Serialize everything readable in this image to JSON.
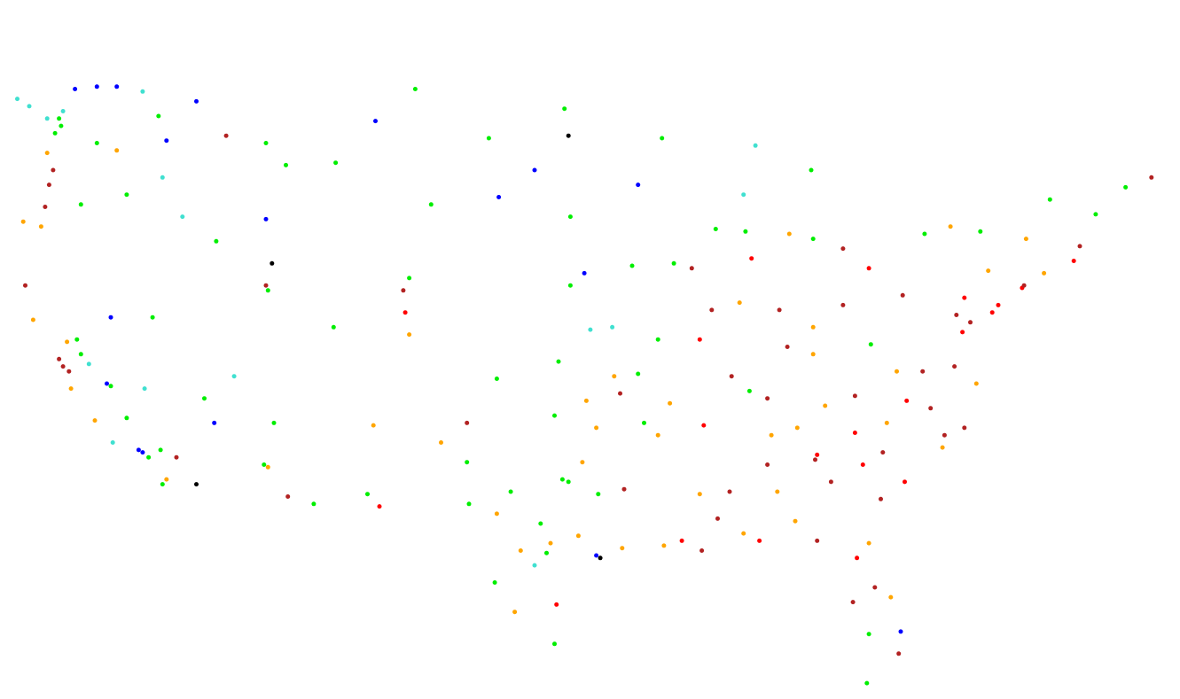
{
  "map": {
    "type": "scatter",
    "projection": "equirectangular",
    "lon_range": [
      -124.7,
      -67.0
    ],
    "lat_range": [
      25.0,
      49.0
    ],
    "categories": [
      {
        "id": 0,
        "color": "#40e0d0"
      },
      {
        "id": 1,
        "color": "#0000ff"
      },
      {
        "id": 2,
        "color": "#000000"
      },
      {
        "id": 3,
        "color": "#00ee00"
      },
      {
        "id": 4,
        "color": "#ffa500"
      },
      {
        "id": 5,
        "color": "#b22222"
      },
      {
        "id": 6,
        "color": "#ff0000"
      }
    ],
    "points": [
      [
        -124.5,
        48.4,
        0
      ],
      [
        -123.9,
        48.1,
        0
      ],
      [
        -123.0,
        47.6,
        0
      ],
      [
        -122.4,
        47.6,
        3
      ],
      [
        -122.3,
        47.3,
        3
      ],
      [
        -122.6,
        47.0,
        3
      ],
      [
        -122.2,
        47.9,
        0
      ],
      [
        -121.6,
        48.8,
        1
      ],
      [
        -120.5,
        48.9,
        1
      ],
      [
        -119.5,
        48.9,
        1
      ],
      [
        -118.2,
        48.7,
        0
      ],
      [
        -117.4,
        47.7,
        3
      ],
      [
        -117.0,
        46.7,
        1
      ],
      [
        -119.5,
        46.3,
        4
      ],
      [
        -120.5,
        46.6,
        3
      ],
      [
        -123.0,
        46.2,
        4
      ],
      [
        -122.7,
        45.5,
        5
      ],
      [
        -122.9,
        44.9,
        5
      ],
      [
        -123.1,
        44.0,
        5
      ],
      [
        -123.3,
        43.2,
        4
      ],
      [
        -124.2,
        43.4,
        4
      ],
      [
        -121.3,
        44.1,
        3
      ],
      [
        -119.0,
        44.5,
        3
      ],
      [
        -117.2,
        45.2,
        0
      ],
      [
        -116.2,
        43.6,
        0
      ],
      [
        -114.5,
        42.6,
        3
      ],
      [
        -112.0,
        43.5,
        1
      ],
      [
        -111.0,
        45.7,
        3
      ],
      [
        -108.5,
        45.8,
        3
      ],
      [
        -106.5,
        47.5,
        1
      ],
      [
        -104.5,
        48.8,
        3
      ],
      [
        -112.0,
        46.6,
        3
      ],
      [
        -114.0,
        46.9,
        5
      ],
      [
        -115.5,
        48.3,
        1
      ],
      [
        -124.1,
        40.8,
        5
      ],
      [
        -123.7,
        39.4,
        4
      ],
      [
        -122.4,
        37.8,
        5
      ],
      [
        -122.2,
        37.5,
        5
      ],
      [
        -121.9,
        37.3,
        5
      ],
      [
        -122.0,
        38.5,
        4
      ],
      [
        -121.5,
        38.6,
        3
      ],
      [
        -121.3,
        38.0,
        3
      ],
      [
        -120.9,
        37.6,
        0
      ],
      [
        -120.0,
        36.8,
        1
      ],
      [
        -119.8,
        36.7,
        3
      ],
      [
        -119.0,
        35.4,
        3
      ],
      [
        -121.8,
        36.6,
        4
      ],
      [
        -120.6,
        35.3,
        4
      ],
      [
        -119.7,
        34.4,
        0
      ],
      [
        -118.4,
        34.1,
        1
      ],
      [
        -118.2,
        34.0,
        1
      ],
      [
        -117.9,
        33.8,
        3
      ],
      [
        -117.2,
        32.7,
        3
      ],
      [
        -117.0,
        32.9,
        4
      ],
      [
        -116.5,
        33.8,
        5
      ],
      [
        -115.5,
        32.7,
        2
      ],
      [
        -117.3,
        34.1,
        3
      ],
      [
        -118.1,
        36.6,
        0
      ],
      [
        -119.8,
        39.5,
        1
      ],
      [
        -117.7,
        39.5,
        3
      ],
      [
        -115.1,
        36.2,
        3
      ],
      [
        -114.6,
        35.2,
        1
      ],
      [
        -112.1,
        33.5,
        3
      ],
      [
        -111.9,
        33.4,
        4
      ],
      [
        -110.9,
        32.2,
        5
      ],
      [
        -111.6,
        35.2,
        3
      ],
      [
        -109.6,
        31.9,
        3
      ],
      [
        -112.0,
        40.8,
        5
      ],
      [
        -111.9,
        40.6,
        3
      ],
      [
        -111.7,
        41.7,
        2
      ],
      [
        -113.6,
        37.1,
        0
      ],
      [
        -108.6,
        39.1,
        3
      ],
      [
        -105.0,
        39.7,
        6
      ],
      [
        -104.8,
        38.8,
        4
      ],
      [
        -105.1,
        40.6,
        5
      ],
      [
        -104.8,
        41.1,
        3
      ],
      [
        -106.6,
        35.1,
        4
      ],
      [
        -106.9,
        32.3,
        3
      ],
      [
        -103.2,
        34.4,
        4
      ],
      [
        -106.3,
        31.8,
        6
      ],
      [
        -101.9,
        35.2,
        5
      ],
      [
        -101.9,
        33.6,
        3
      ],
      [
        -100.4,
        37.0,
        3
      ],
      [
        -103.7,
        44.1,
        3
      ],
      [
        -100.3,
        44.4,
        1
      ],
      [
        -96.7,
        43.6,
        3
      ],
      [
        -98.5,
        45.5,
        1
      ],
      [
        -100.8,
        46.8,
        3
      ],
      [
        -96.8,
        46.9,
        2
      ],
      [
        -97.0,
        48.0,
        3
      ],
      [
        -97.5,
        35.5,
        3
      ],
      [
        -95.9,
        36.1,
        4
      ],
      [
        -97.3,
        37.7,
        3
      ],
      [
        -95.7,
        39.0,
        0
      ],
      [
        -94.6,
        39.1,
        0
      ],
      [
        -96.0,
        41.3,
        1
      ],
      [
        -96.7,
        40.8,
        3
      ],
      [
        -93.6,
        41.6,
        3
      ],
      [
        -93.3,
        44.9,
        1
      ],
      [
        -92.1,
        46.8,
        3
      ],
      [
        -97.1,
        32.9,
        3
      ],
      [
        -96.8,
        32.8,
        3
      ],
      [
        -97.7,
        30.3,
        4
      ],
      [
        -98.5,
        29.4,
        0
      ],
      [
        -95.4,
        29.8,
        1
      ],
      [
        -95.2,
        29.7,
        2
      ],
      [
        -94.1,
        30.1,
        4
      ],
      [
        -99.5,
        27.5,
        4
      ],
      [
        -97.4,
        27.8,
        6
      ],
      [
        -97.5,
        26.2,
        3
      ],
      [
        -101.8,
        31.9,
        3
      ],
      [
        -100.4,
        31.5,
        4
      ],
      [
        -99.7,
        32.4,
        3
      ],
      [
        -94.0,
        32.5,
        5
      ],
      [
        -92.0,
        30.2,
        4
      ],
      [
        -91.1,
        30.4,
        6
      ],
      [
        -90.1,
        30.0,
        5
      ],
      [
        -92.3,
        34.7,
        4
      ],
      [
        -90.0,
        35.1,
        6
      ],
      [
        -86.8,
        36.2,
        5
      ],
      [
        -85.3,
        35.0,
        4
      ],
      [
        -84.4,
        33.7,
        5
      ],
      [
        -84.3,
        33.9,
        6
      ],
      [
        -86.8,
        33.5,
        5
      ],
      [
        -88.0,
        30.7,
        4
      ],
      [
        -87.2,
        30.4,
        6
      ],
      [
        -84.3,
        30.4,
        5
      ],
      [
        -82.5,
        27.9,
        5
      ],
      [
        -81.4,
        28.5,
        5
      ],
      [
        -81.7,
        26.6,
        3
      ],
      [
        -80.2,
        25.8,
        5
      ],
      [
        -80.1,
        26.7,
        1
      ],
      [
        -81.7,
        30.3,
        4
      ],
      [
        -81.1,
        32.1,
        5
      ],
      [
        -79.9,
        32.8,
        6
      ],
      [
        -80.8,
        35.2,
        4
      ],
      [
        -78.6,
        35.8,
        5
      ],
      [
        -79.8,
        36.1,
        6
      ],
      [
        -77.4,
        37.5,
        5
      ],
      [
        -76.3,
        36.8,
        4
      ],
      [
        -77.0,
        38.9,
        6
      ],
      [
        -76.6,
        39.3,
        5
      ],
      [
        -75.2,
        40.0,
        6
      ],
      [
        -74.0,
        40.7,
        6
      ],
      [
        -73.9,
        40.8,
        5
      ],
      [
        -72.9,
        41.3,
        4
      ],
      [
        -71.4,
        41.8,
        6
      ],
      [
        -71.1,
        42.4,
        5
      ],
      [
        -70.3,
        43.7,
        3
      ],
      [
        -68.8,
        44.8,
        3
      ],
      [
        -67.5,
        45.2,
        5
      ],
      [
        -72.6,
        44.3,
        3
      ],
      [
        -73.8,
        42.7,
        4
      ],
      [
        -76.1,
        43.0,
        3
      ],
      [
        -77.6,
        43.2,
        4
      ],
      [
        -78.9,
        42.9,
        3
      ],
      [
        -80.0,
        40.4,
        5
      ],
      [
        -81.7,
        41.5,
        6
      ],
      [
        -83.0,
        40.0,
        5
      ],
      [
        -84.5,
        39.1,
        4
      ],
      [
        -86.2,
        39.8,
        5
      ],
      [
        -87.6,
        41.9,
        6
      ],
      [
        -87.9,
        43.0,
        3
      ],
      [
        -89.4,
        43.1,
        3
      ],
      [
        -88.0,
        44.5,
        0
      ],
      [
        -83.0,
        42.3,
        5
      ],
      [
        -85.7,
        42.9,
        4
      ],
      [
        -84.5,
        42.7,
        3
      ],
      [
        -85.8,
        38.3,
        5
      ],
      [
        -84.5,
        38.0,
        4
      ],
      [
        -81.6,
        38.4,
        3
      ],
      [
        -82.4,
        36.3,
        5
      ],
      [
        -90.2,
        38.6,
        6
      ],
      [
        -92.3,
        38.6,
        3
      ],
      [
        -94.5,
        37.1,
        4
      ],
      [
        -93.3,
        37.2,
        3
      ],
      [
        -89.6,
        39.8,
        5
      ],
      [
        -88.2,
        40.1,
        4
      ],
      [
        -91.5,
        41.7,
        3
      ],
      [
        -90.6,
        41.5,
        5
      ],
      [
        -84.6,
        45.5,
        3
      ],
      [
        -87.4,
        46.5,
        0
      ],
      [
        -83.9,
        35.9,
        4
      ],
      [
        -82.0,
        33.5,
        6
      ],
      [
        -83.6,
        32.8,
        5
      ],
      [
        -86.3,
        32.4,
        4
      ],
      [
        -88.7,
        32.4,
        5
      ],
      [
        -90.2,
        32.3,
        4
      ],
      [
        -89.3,
        31.3,
        5
      ],
      [
        -85.4,
        31.2,
        4
      ],
      [
        -82.3,
        29.7,
        6
      ],
      [
        -80.6,
        28.1,
        4
      ],
      [
        -81.8,
        24.6,
        3
      ],
      [
        -78.0,
        34.2,
        4
      ],
      [
        -77.9,
        34.7,
        5
      ],
      [
        -76.9,
        35.0,
        5
      ],
      [
        -75.5,
        39.7,
        6
      ],
      [
        -77.3,
        39.6,
        5
      ],
      [
        -76.9,
        40.3,
        6
      ],
      [
        -75.7,
        41.4,
        4
      ],
      [
        -79.0,
        37.3,
        5
      ],
      [
        -80.3,
        37.3,
        4
      ],
      [
        -81.0,
        34.0,
        5
      ],
      [
        -82.4,
        34.8,
        6
      ],
      [
        -86.6,
        34.7,
        4
      ],
      [
        -87.7,
        36.5,
        3
      ],
      [
        -88.6,
        37.1,
        5
      ],
      [
        -91.7,
        36.0,
        4
      ],
      [
        -93.0,
        35.2,
        3
      ],
      [
        -95.4,
        35.0,
        4
      ],
      [
        -94.2,
        36.4,
        5
      ],
      [
        -96.1,
        33.6,
        4
      ],
      [
        -95.3,
        32.3,
        3
      ],
      [
        -96.3,
        30.6,
        4
      ],
      [
        -97.9,
        29.9,
        3
      ],
      [
        -98.2,
        31.1,
        3
      ],
      [
        -99.2,
        30.0,
        4
      ],
      [
        -100.5,
        28.7,
        3
      ]
    ]
  }
}
